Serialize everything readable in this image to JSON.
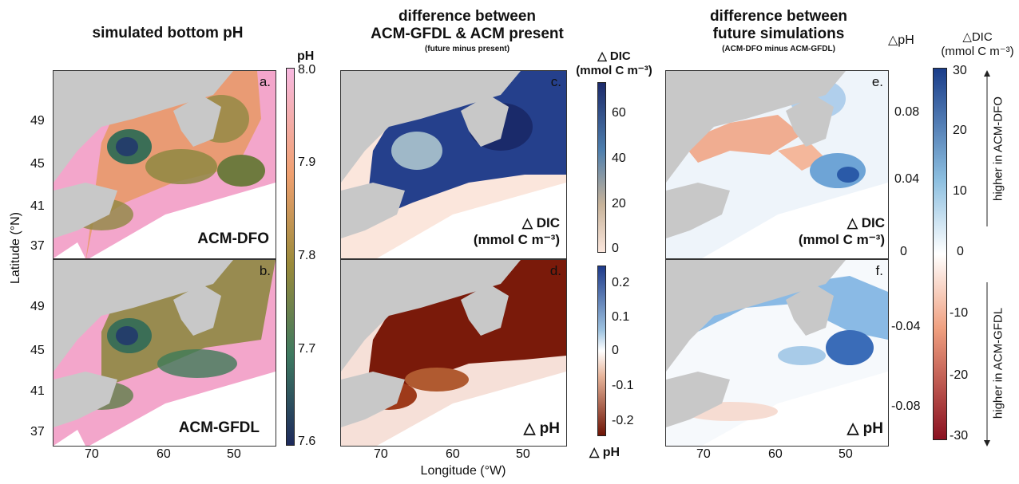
{
  "titles": {
    "col1": "simulated bottom pH",
    "col2_l1": "difference between",
    "col2_l2": "ACM-GFDL & ACM present",
    "col2_sub": "(future minus present)",
    "col3_l1": "difference between",
    "col3_l2": "future simulations",
    "col3_sub": "(ACM-DFO minus ACM-GFDL)"
  },
  "axes": {
    "ylabel": "Latitude (°N)",
    "xlabel": "Longitude (°W)",
    "lat_ticks": [
      "49",
      "45",
      "41",
      "37"
    ],
    "lon_ticks": [
      "70",
      "60",
      "50"
    ]
  },
  "panels": {
    "a": {
      "tag": "a.",
      "label": "ACM-DFO"
    },
    "b": {
      "tag": "b.",
      "label": "ACM-GFDL"
    },
    "c": {
      "tag": "c.",
      "label_l1": "△ DIC",
      "label_l2": "(mmol C m⁻³)"
    },
    "d": {
      "tag": "d.",
      "label": "△ pH"
    },
    "e": {
      "tag": "e.",
      "label_l1": "△ DIC",
      "label_l2": "(mmol C m⁻³)"
    },
    "f": {
      "tag": "f.",
      "label": "△ pH"
    }
  },
  "colorbars": {
    "ph": {
      "title": "pH",
      "ticks": [
        "8.0",
        "7.9",
        "7.8",
        "7.7",
        "7.6"
      ]
    },
    "dic": {
      "title_l1": "△ DIC",
      "title_l2": "(mmol C m⁻³)",
      "ticks": [
        "60",
        "40",
        "20",
        "0"
      ]
    },
    "dph": {
      "title": "△ pH",
      "ticks": [
        "0.2",
        "0.1",
        "0",
        "-0.1",
        "-0.2"
      ]
    },
    "diff_ph": {
      "title": "△pH",
      "ticks": [
        "0.08",
        "0.04",
        "0",
        "-0.04",
        "-0.08"
      ]
    },
    "diff_dic": {
      "title_l1": "△DIC",
      "title_l2": "(mmol C m⁻³)",
      "ticks": [
        "30",
        "20",
        "10",
        "0",
        "-10",
        "-20",
        "-30"
      ]
    },
    "higher_dfo": "higher in ACM-DFO",
    "higher_gfdl": "higher in ACM-GFDL"
  },
  "colors": {
    "land": "#c8c8c8",
    "ph_scale": [
      "#f7b8e0",
      "#f0a070",
      "#9a8a3a",
      "#3e7a60",
      "#1e2a5c"
    ],
    "dic_scale": [
      "#fbe6dc",
      "#c7b39a",
      "#4e7fae",
      "#1c2a6b"
    ],
    "dph_scale": [
      "#2a4a9a",
      "#ffffff",
      "#7a1a0a"
    ],
    "div_scale": [
      "#1a3d8a",
      "#ffffff",
      "#8a1020"
    ]
  },
  "chart_data": {
    "type": "heatmap",
    "title": "simulated bottom pH",
    "xlabel": "Longitude (°W)",
    "ylabel": "Latitude (°N)",
    "xlim": [
      75,
      45
    ],
    "ylim": [
      35,
      52
    ],
    "panels": [
      {
        "id": "a",
        "name": "ACM-DFO",
        "variable": "pH",
        "range": [
          7.6,
          8.0
        ]
      },
      {
        "id": "b",
        "name": "ACM-GFDL",
        "variable": "pH",
        "range": [
          7.6,
          8.0
        ]
      },
      {
        "id": "c",
        "variable": "△ DIC",
        "units": "mmol C m⁻³",
        "range": [
          0,
          70
        ]
      },
      {
        "id": "d",
        "variable": "△ pH",
        "range": [
          -0.25,
          0.25
        ]
      },
      {
        "id": "e",
        "variable": "△ DIC",
        "units": "mmol C m⁻³",
        "range": [
          -30,
          30
        ]
      },
      {
        "id": "f",
        "variable": "△ pH",
        "range": [
          -0.1,
          0.1
        ]
      }
    ]
  }
}
